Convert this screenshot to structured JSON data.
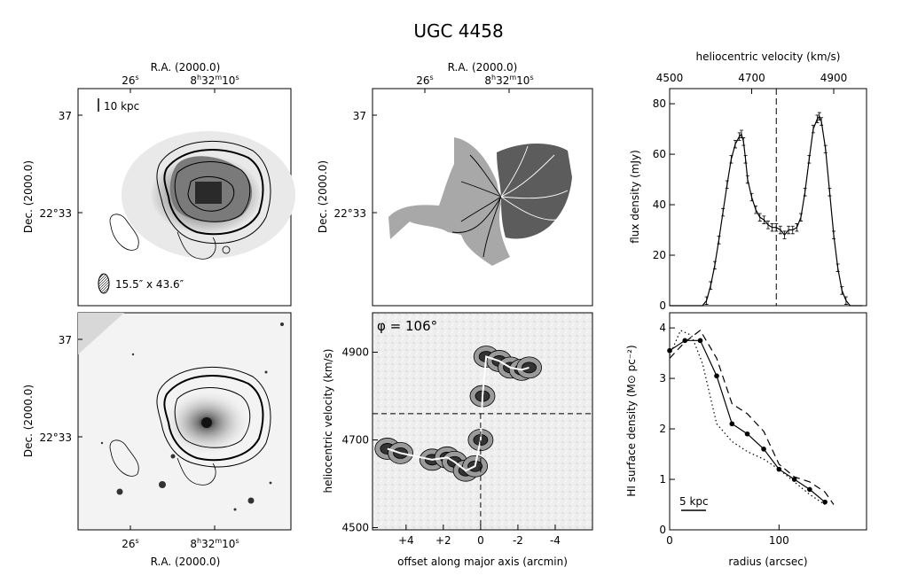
{
  "figure": {
    "title": "UGC 4458"
  },
  "panels": {
    "moment0": {
      "top_xlabel": "R.A. (2000.0)",
      "ra_ticks": [
        "26",
        "8",
        "32",
        "10"
      ],
      "ra_units": [
        "s",
        "h",
        "m",
        "s"
      ],
      "ylabel": "Dec. (2000.0)",
      "dec_ticks": [
        "37",
        "22°33"
      ],
      "scale_bar": "10 kpc",
      "beam": "15.5″ x 43.6″"
    },
    "velocity_field": {
      "top_xlabel": "R.A. (2000.0)",
      "ylabel": "Dec. (2000.0)",
      "dec_ticks": [
        "37",
        "22°33"
      ]
    },
    "optical_overlay": {
      "xlabel": "R.A. (2000.0)",
      "ylabel": "Dec. (2000.0)",
      "dec_ticks": [
        "37",
        "22°33"
      ]
    }
  },
  "chart_data": [
    {
      "type": "heatmap",
      "panel": "pv-diagram",
      "annotation": "φ = 106°",
      "xlabel": "offset along major axis (arcmin)",
      "ylabel": "heliocentric velocity (km/s)",
      "xticks": [
        "+4",
        "+2",
        "0",
        "-2",
        "-4"
      ],
      "xlim": [
        5.8,
        -6.0
      ],
      "yticks": [
        4500,
        4700,
        4900
      ],
      "ylim": [
        4495,
        4990
      ],
      "systemic_velocity": 4760,
      "ridge": [
        {
          "x": 5.0,
          "y": 4680
        },
        {
          "x": 4.3,
          "y": 4670
        },
        {
          "x": 2.6,
          "y": 4655
        },
        {
          "x": 1.8,
          "y": 4660
        },
        {
          "x": 1.4,
          "y": 4650
        },
        {
          "x": 0.8,
          "y": 4630
        },
        {
          "x": 0.3,
          "y": 4640
        },
        {
          "x": 0.0,
          "y": 4700
        },
        {
          "x": -0.1,
          "y": 4800
        },
        {
          "x": -0.3,
          "y": 4890
        },
        {
          "x": -1.0,
          "y": 4880
        },
        {
          "x": -1.6,
          "y": 4865
        },
        {
          "x": -2.2,
          "y": 4860
        },
        {
          "x": -2.6,
          "y": 4865
        }
      ]
    },
    {
      "type": "line",
      "panel": "global-profile",
      "xlabel": "heliocentric velocity (km/s)",
      "ylabel": "flux density (mJy)",
      "xticks": [
        4500,
        4700,
        4900
      ],
      "xlim": [
        4500,
        4980
      ],
      "yticks": [
        0,
        20,
        40,
        60,
        80
      ],
      "ylim": [
        0,
        86
      ],
      "systemic_velocity": 4760,
      "x": [
        4500,
        4520,
        4540,
        4560,
        4580,
        4590,
        4600,
        4610,
        4620,
        4630,
        4640,
        4650,
        4660,
        4670,
        4675,
        4680,
        4685,
        4690,
        4700,
        4710,
        4720,
        4730,
        4740,
        4750,
        4760,
        4770,
        4780,
        4790,
        4800,
        4810,
        4820,
        4830,
        4840,
        4850,
        4860,
        4865,
        4870,
        4880,
        4890,
        4900,
        4910,
        4920,
        4930,
        4940,
        4950,
        4970
      ],
      "values": [
        0,
        0,
        0,
        0,
        0,
        2,
        8,
        16,
        26,
        37,
        48,
        58,
        64,
        67,
        68,
        65,
        58,
        50,
        43,
        38,
        35,
        34,
        32,
        31,
        31,
        30,
        28,
        30,
        30,
        31,
        35,
        45,
        58,
        70,
        74,
        75,
        73,
        62,
        45,
        28,
        15,
        6,
        2,
        0,
        0,
        0
      ],
      "error_bar": 1.5
    },
    {
      "type": "line",
      "panel": "surface-density",
      "xlabel": "radius (arcsec)",
      "ylabel": "HI surface density (M⊙ pc⁻²)",
      "xticks": [
        0,
        100
      ],
      "xlim": [
        0,
        180
      ],
      "yticks": [
        0,
        1,
        2,
        3,
        4
      ],
      "ylim": [
        0,
        4.3
      ],
      "scale_bar": "5 kpc",
      "series": [
        {
          "style": "solid",
          "x": [
            0,
            14,
            28,
            43,
            57,
            71,
            86,
            100,
            114,
            128,
            142
          ],
          "values": [
            3.55,
            3.75,
            3.75,
            3.05,
            2.1,
            1.9,
            1.6,
            1.2,
            1.0,
            0.8,
            0.55
          ]
        },
        {
          "style": "dashed",
          "x": [
            0,
            14,
            28,
            43,
            57,
            71,
            86,
            100,
            114,
            128,
            142,
            150
          ],
          "values": [
            3.4,
            3.72,
            3.95,
            3.4,
            2.5,
            2.3,
            1.95,
            1.3,
            1.05,
            0.95,
            0.75,
            0.5
          ]
        },
        {
          "style": "dotted",
          "x": [
            0,
            10,
            20,
            30,
            43,
            57,
            71,
            86,
            100,
            114,
            128,
            142
          ],
          "values": [
            3.45,
            3.95,
            3.85,
            3.3,
            2.1,
            1.75,
            1.55,
            1.4,
            1.2,
            0.95,
            0.7,
            0.5
          ]
        }
      ]
    }
  ]
}
